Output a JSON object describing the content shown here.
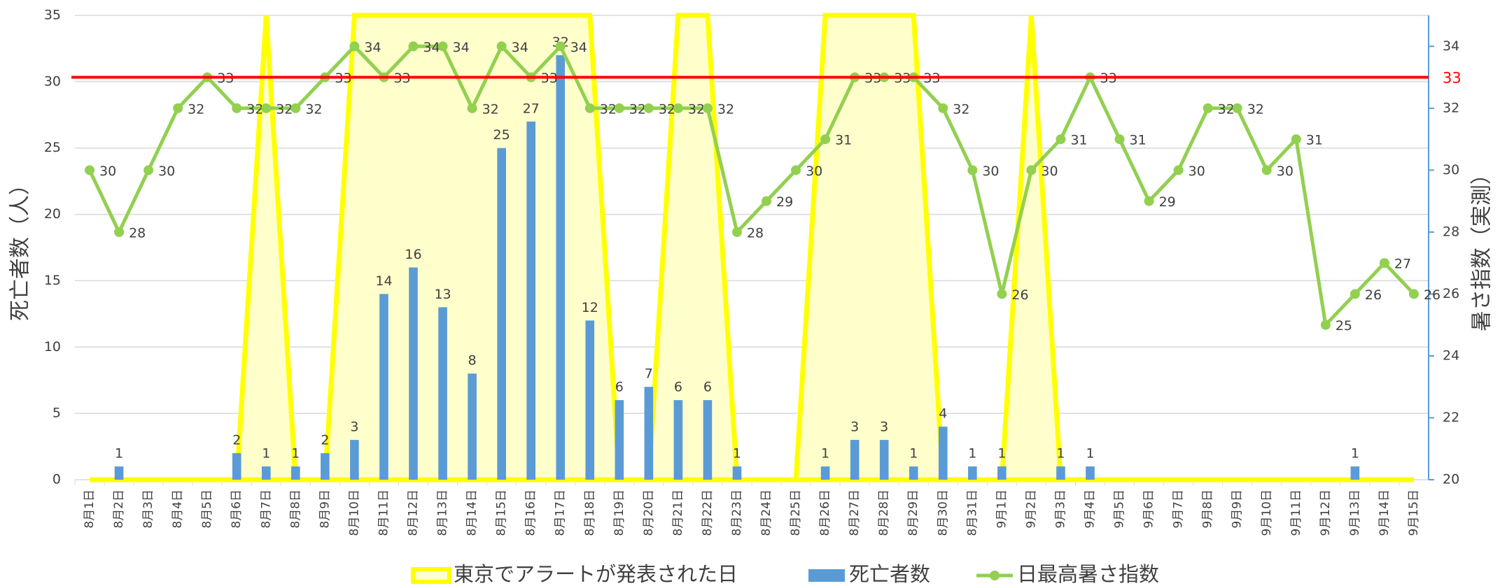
{
  "chart_data": {
    "type": "combo",
    "categories": [
      "8月1日",
      "8月2日",
      "8月3日",
      "8月4日",
      "8月5日",
      "8月6日",
      "8月7日",
      "8月8日",
      "8月9日",
      "8月10日",
      "8月11日",
      "8月12日",
      "8月13日",
      "8月14日",
      "8月15日",
      "8月16日",
      "8月17日",
      "8月18日",
      "8月19日",
      "8月20日",
      "8月21日",
      "8月22日",
      "8月23日",
      "8月24日",
      "8月25日",
      "8月26日",
      "8月27日",
      "8月28日",
      "8月29日",
      "8月30日",
      "8月31日",
      "9月1日",
      "9月2日",
      "9月3日",
      "9月4日",
      "9月5日",
      "9月6日",
      "9月7日",
      "9月8日",
      "9月9日",
      "9月10日",
      "9月11日",
      "9月12日",
      "9月13日",
      "9月14日",
      "9月15日"
    ],
    "series": [
      {
        "name": "東京でアラートが発表された日",
        "type": "area",
        "color": "#ffff00",
        "fill": "#ffffcc",
        "values": [
          0,
          0,
          0,
          0,
          0,
          0,
          35,
          0,
          0,
          35,
          35,
          35,
          35,
          35,
          35,
          35,
          35,
          35,
          0,
          0,
          35,
          35,
          0,
          0,
          0,
          35,
          35,
          35,
          35,
          0,
          0,
          0,
          35,
          0,
          0,
          0,
          0,
          0,
          0,
          0,
          0,
          0,
          0,
          0,
          0,
          0
        ]
      },
      {
        "name": "死亡者数",
        "type": "bar",
        "color": "#5b9bd5",
        "values": [
          0,
          1,
          0,
          0,
          0,
          2,
          1,
          1,
          2,
          3,
          14,
          16,
          13,
          8,
          25,
          27,
          32,
          12,
          6,
          7,
          6,
          6,
          1,
          0,
          0,
          1,
          3,
          3,
          1,
          4,
          1,
          1,
          0,
          1,
          1,
          0,
          0,
          0,
          0,
          0,
          0,
          0,
          0,
          1,
          0,
          0
        ]
      },
      {
        "name": "日最高暑さ指数",
        "type": "line",
        "axis": "y2",
        "color": "#92d050",
        "values": [
          30,
          28,
          30,
          32,
          33,
          32,
          32,
          32,
          33,
          34,
          33,
          34,
          34,
          32,
          34,
          33,
          34,
          32,
          32,
          32,
          32,
          32,
          28,
          29,
          30,
          31,
          33,
          33,
          33,
          32,
          30,
          26,
          30,
          31,
          33,
          31,
          29,
          30,
          32,
          32,
          30,
          31,
          25,
          26,
          27,
          26
        ]
      }
    ],
    "ylabel": "死亡者数（人）",
    "y2label": "暑さ指数（実測）",
    "ylim": [
      0,
      35
    ],
    "yticks": [
      0,
      5,
      10,
      15,
      20,
      25,
      30,
      35
    ],
    "y2lim": [
      20,
      35
    ],
    "y2ticks": [
      20,
      22,
      24,
      26,
      28,
      30,
      32,
      34
    ],
    "reference_line": {
      "value": 33,
      "axis": "y2",
      "color": "#ff0000"
    },
    "grid": true
  }
}
